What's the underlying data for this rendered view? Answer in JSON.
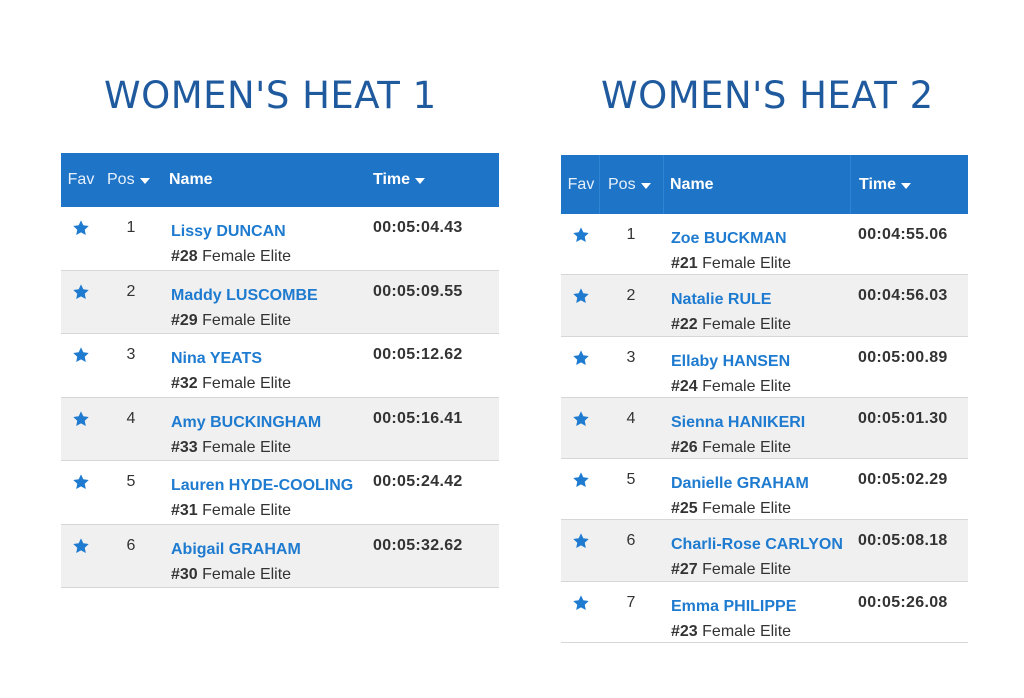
{
  "heats": [
    {
      "title": "WOMEN'S HEAT 1",
      "columns": {
        "fav": "Fav",
        "pos": "Pos",
        "name": "Name",
        "time": "Time"
      },
      "rows": [
        {
          "pos": "1",
          "name": "Lissy DUNCAN",
          "bib": "#28",
          "category": "Female Elite",
          "time": "00:05:04.43"
        },
        {
          "pos": "2",
          "name": "Maddy LUSCOMBE",
          "bib": "#29",
          "category": "Female Elite",
          "time": "00:05:09.55"
        },
        {
          "pos": "3",
          "name": "Nina YEATS",
          "bib": "#32",
          "category": "Female Elite",
          "time": "00:05:12.62"
        },
        {
          "pos": "4",
          "name": "Amy BUCKINGHAM",
          "bib": "#33",
          "category": "Female Elite",
          "time": "00:05:16.41"
        },
        {
          "pos": "5",
          "name": "Lauren HYDE-COOLING",
          "bib": "#31",
          "category": "Female Elite",
          "time": "00:05:24.42"
        },
        {
          "pos": "6",
          "name": "Abigail GRAHAM",
          "bib": "#30",
          "category": "Female Elite",
          "time": "00:05:32.62"
        }
      ]
    },
    {
      "title": "WOMEN'S HEAT 2",
      "columns": {
        "fav": "Fav",
        "pos": "Pos",
        "name": "Name",
        "time": "Time"
      },
      "rows": [
        {
          "pos": "1",
          "name": "Zoe BUCKMAN",
          "bib": "#21",
          "category": "Female Elite",
          "time": "00:04:55.06"
        },
        {
          "pos": "2",
          "name": "Natalie RULE",
          "bib": "#22",
          "category": "Female Elite",
          "time": "00:04:56.03"
        },
        {
          "pos": "3",
          "name": "Ellaby HANSEN",
          "bib": "#24",
          "category": "Female Elite",
          "time": "00:05:00.89"
        },
        {
          "pos": "4",
          "name": "Sienna HANIKERI",
          "bib": "#26",
          "category": "Female Elite",
          "time": "00:05:01.30"
        },
        {
          "pos": "5",
          "name": "Danielle GRAHAM",
          "bib": "#25",
          "category": "Female Elite",
          "time": "00:05:02.29"
        },
        {
          "pos": "6",
          "name": "Charli-Rose CARLYON",
          "bib": "#27",
          "category": "Female Elite",
          "time": "00:05:08.18"
        },
        {
          "pos": "7",
          "name": "Emma PHILIPPE",
          "bib": "#23",
          "category": "Female Elite",
          "time": "00:05:26.08"
        }
      ]
    }
  ],
  "icons": {
    "favorite": "star-icon",
    "sort": "caret-down-icon"
  },
  "colors": {
    "header_bg": "#1e74c6",
    "title": "#1f5a9e",
    "name_link": "#1e7bd0",
    "star": "#1e7bd0",
    "alt_row": "#f0f0f0"
  }
}
